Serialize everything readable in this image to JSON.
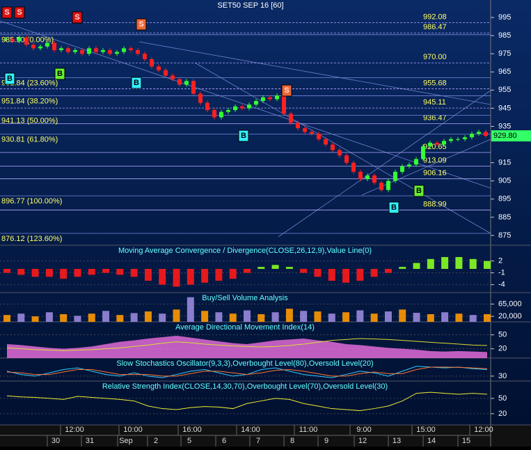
{
  "chart_data": [
    {
      "type": "candlestick",
      "title": "SET50 SEP 16  [60]",
      "close": [
        983,
        982,
        984,
        980,
        978,
        979,
        981,
        977,
        978,
        976,
        977,
        975,
        978,
        976,
        977,
        975,
        976,
        978,
        977,
        975,
        972,
        968,
        966,
        963,
        961,
        958,
        960,
        953,
        948,
        944,
        940,
        943,
        944,
        946,
        945,
        947,
        949,
        951,
        950,
        952,
        942,
        937,
        934,
        932,
        931,
        928,
        925,
        922,
        919,
        915,
        910,
        906,
        908,
        904,
        900,
        905,
        910,
        913,
        914,
        917,
        924,
        926,
        925,
        927,
        928,
        928,
        929,
        931,
        932,
        929.8
      ],
      "up_color": "#33ff33",
      "down_color": "#ff2020",
      "last_price": {
        "value": 929.8,
        "label": "929.80"
      },
      "ylim": [
        869.6,
        1004.6
      ],
      "yticks": [
        995,
        985,
        975,
        965,
        955,
        945,
        935,
        915,
        905,
        895,
        885,
        875
      ],
      "levels": [
        992.08,
        986.47,
        {
          "value": 970,
          "label": "970.00"
        },
        955.68,
        945.11,
        936.47,
        920.65,
        913.09,
        906.16,
        888.99
      ],
      "fib_levels": [
        {
          "value": 985.5,
          "label": "985.50 (0.00%)"
        },
        {
          "value": 961.84,
          "label": "961.84 (23.60%)"
        },
        {
          "value": 951.84,
          "label": "951.84 (38.20%)"
        },
        {
          "value": 941.13,
          "label": "941.13 (50.00%)"
        },
        {
          "value": 930.81,
          "label": "930.81 (61.80%)"
        },
        {
          "value": 896.77,
          "label": "896.77 (100.00%)"
        },
        {
          "value": 876.12,
          "label": "876.12 (123.60%)"
        }
      ],
      "signals": [
        "S",
        "S",
        "S",
        "S",
        "S",
        "B",
        "B",
        "B",
        "B",
        "B",
        "B"
      ]
    },
    {
      "type": "bar",
      "title": "Moving Average Convergence / Divergence(CLOSE,26,12,9),Value Line(0)",
      "color_positive": "#88ff22",
      "color_negative": "#ff1a1a",
      "values": [
        -1,
        -1.5,
        -2,
        -2,
        -2.5,
        -2,
        -1.5,
        -1,
        -1.5,
        -2,
        -3,
        -4,
        -4.5,
        -4,
        -3.5,
        -3,
        -2.5,
        -1,
        0.5,
        1,
        0.5,
        -1,
        -2,
        -3,
        -3.5,
        -3,
        -2,
        -1,
        0.5,
        1.5,
        2.5,
        3,
        3,
        2.5,
        2
      ],
      "ylim": [
        -6,
        6
      ],
      "yticks": [
        2,
        -1,
        -4
      ]
    },
    {
      "type": "bar",
      "title": "Buy/Sell Volume Analysis",
      "color_positive": "#ff9900",
      "color_alt": "#9988dd",
      "values": [
        25000,
        30000,
        20000,
        35000,
        28000,
        22000,
        30000,
        40000,
        25000,
        32000,
        38000,
        30000,
        45000,
        90000,
        40000,
        35000,
        30000,
        42000,
        28000,
        35000,
        48000,
        40000,
        38000,
        30000,
        35000,
        42000,
        30000,
        38000,
        45000,
        33000,
        28000,
        35000,
        30000,
        25000,
        28000
      ],
      "ylim": [
        0,
        107000
      ],
      "yticks": [
        {
          "value": 65000,
          "label": "65,000"
        },
        {
          "value": 20000,
          "label": "20,000"
        }
      ]
    },
    {
      "type": "line",
      "title": "Average Directional Movement Index(14)",
      "series": [
        {
          "color": "#ff77ee",
          "style": "band",
          "values": [
            30,
            28,
            25,
            22,
            20,
            22,
            25,
            30,
            35,
            38,
            42,
            45,
            48,
            44,
            40,
            36,
            32,
            30,
            34,
            38,
            40,
            42,
            38,
            35,
            30,
            28,
            25,
            22,
            20,
            18,
            15,
            14,
            15,
            14,
            13
          ]
        },
        {
          "color": "#dddd33",
          "values": [
            22,
            20,
            18,
            17,
            16,
            17,
            18,
            20,
            22,
            25,
            28,
            32,
            35,
            33,
            30,
            28,
            26,
            25,
            24,
            25,
            27,
            30,
            34,
            38,
            40,
            42,
            41,
            40,
            38,
            36,
            34,
            32,
            30,
            28,
            27
          ]
        }
      ],
      "ylim": [
        0,
        78
      ],
      "yticks": [
        50,
        20
      ]
    },
    {
      "type": "line",
      "title": "Slow Stochastics Oscillator(9,3,3),Overbought Level(80),Oversold Level(20)",
      "series": [
        {
          "color": "#33ccff",
          "values": [
            60,
            40,
            30,
            50,
            70,
            80,
            60,
            40,
            30,
            50,
            30,
            20,
            40,
            60,
            70,
            50,
            30,
            40,
            70,
            80,
            60,
            40,
            30,
            20,
            40,
            60,
            50,
            30,
            60,
            90,
            85,
            80,
            85,
            75,
            70
          ]
        },
        {
          "color": "#ff7733",
          "values": [
            55,
            50,
            40,
            40,
            55,
            70,
            70,
            55,
            40,
            40,
            40,
            30,
            30,
            45,
            60,
            60,
            50,
            40,
            50,
            65,
            70,
            60,
            45,
            30,
            30,
            45,
            55,
            45,
            45,
            70,
            85,
            85,
            83,
            80,
            75
          ]
        }
      ],
      "ylim": [
        0,
        140
      ],
      "yticks": [
        30
      ]
    },
    {
      "type": "line",
      "title": "Relative Strength Index(CLOSE,14,30,70),Overbought Level(70),Oversold Level(30)",
      "series": [
        {
          "color": "#eeee33",
          "values": [
            55,
            53,
            52,
            50,
            48,
            54,
            52,
            50,
            48,
            45,
            35,
            30,
            28,
            32,
            34,
            33,
            30,
            40,
            45,
            50,
            48,
            40,
            35,
            30,
            28,
            26,
            30,
            35,
            45,
            60,
            62,
            60,
            58,
            60,
            58
          ]
        }
      ],
      "ylim": [
        -2,
        84
      ],
      "yticks": [
        50,
        20
      ]
    }
  ],
  "time_axis": {
    "times": [
      "12:00",
      "10:00",
      "16:00",
      "14:00",
      "11:00",
      "9:00",
      "15:00",
      "12:00"
    ],
    "days": [
      "30",
      "31",
      "Sep",
      "2",
      "5",
      "6",
      "7",
      "8",
      "9",
      "12",
      "13",
      "14",
      "15"
    ]
  }
}
